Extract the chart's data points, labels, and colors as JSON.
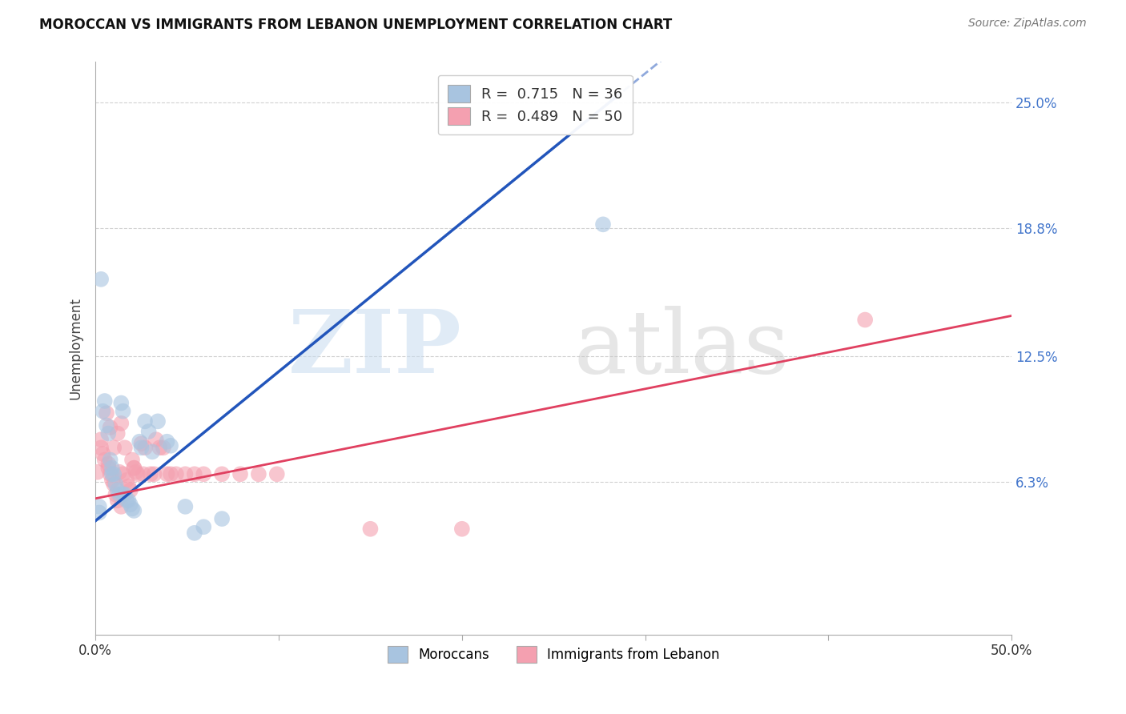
{
  "title": "MOROCCAN VS IMMIGRANTS FROM LEBANON UNEMPLOYMENT CORRELATION CHART",
  "source": "Source: ZipAtlas.com",
  "ylabel": "Unemployment",
  "xlim": [
    0.0,
    0.5
  ],
  "ylim": [
    -0.012,
    0.27
  ],
  "yticks": [
    0.063,
    0.125,
    0.188,
    0.25
  ],
  "ytick_labels": [
    "6.3%",
    "12.5%",
    "18.8%",
    "25.0%"
  ],
  "xtick_positions": [
    0.0,
    0.1,
    0.2,
    0.3,
    0.4,
    0.5
  ],
  "xtick_labels": [
    "0.0%",
    "",
    "",
    "",
    "",
    "50.0%"
  ],
  "background_color": "#ffffff",
  "moroccan_color": "#a8c4e0",
  "lebanon_color": "#f4a0b0",
  "moroccan_line_color": "#2255bb",
  "lebanon_line_color": "#e04060",
  "R_moroccan": 0.715,
  "N_moroccan": 36,
  "R_lebanon": 0.489,
  "N_lebanon": 50,
  "blue_line_solid": [
    [
      0.0,
      0.044
    ],
    [
      0.283,
      0.252
    ]
  ],
  "blue_line_dashed": [
    [
      0.283,
      0.252
    ],
    [
      0.5,
      0.41
    ]
  ],
  "pink_line": [
    [
      0.0,
      0.055
    ],
    [
      0.5,
      0.145
    ]
  ],
  "moroccan_points": [
    [
      0.002,
      0.051
    ],
    [
      0.003,
      0.163
    ],
    [
      0.004,
      0.098
    ],
    [
      0.005,
      0.103
    ],
    [
      0.006,
      0.091
    ],
    [
      0.007,
      0.087
    ],
    [
      0.008,
      0.074
    ],
    [
      0.009,
      0.07
    ],
    [
      0.009,
      0.067
    ],
    [
      0.01,
      0.067
    ],
    [
      0.011,
      0.062
    ],
    [
      0.012,
      0.059
    ],
    [
      0.013,
      0.057
    ],
    [
      0.014,
      0.102
    ],
    [
      0.015,
      0.098
    ],
    [
      0.015,
      0.057
    ],
    [
      0.016,
      0.057
    ],
    [
      0.017,
      0.054
    ],
    [
      0.018,
      0.054
    ],
    [
      0.019,
      0.052
    ],
    [
      0.02,
      0.05
    ],
    [
      0.021,
      0.049
    ],
    [
      0.024,
      0.083
    ],
    [
      0.025,
      0.08
    ],
    [
      0.027,
      0.093
    ],
    [
      0.029,
      0.088
    ],
    [
      0.031,
      0.078
    ],
    [
      0.034,
      0.093
    ],
    [
      0.039,
      0.083
    ],
    [
      0.041,
      0.081
    ],
    [
      0.049,
      0.051
    ],
    [
      0.054,
      0.038
    ],
    [
      0.059,
      0.041
    ],
    [
      0.069,
      0.045
    ],
    [
      0.277,
      0.19
    ],
    [
      0.002,
      0.048
    ]
  ],
  "lebanon_points": [
    [
      0.001,
      0.068
    ],
    [
      0.003,
      0.084
    ],
    [
      0.003,
      0.08
    ],
    [
      0.004,
      0.077
    ],
    [
      0.005,
      0.074
    ],
    [
      0.006,
      0.097
    ],
    [
      0.007,
      0.072
    ],
    [
      0.007,
      0.07
    ],
    [
      0.008,
      0.067
    ],
    [
      0.008,
      0.09
    ],
    [
      0.009,
      0.064
    ],
    [
      0.01,
      0.062
    ],
    [
      0.01,
      0.08
    ],
    [
      0.011,
      0.057
    ],
    [
      0.012,
      0.087
    ],
    [
      0.012,
      0.054
    ],
    [
      0.013,
      0.068
    ],
    [
      0.014,
      0.051
    ],
    [
      0.014,
      0.092
    ],
    [
      0.015,
      0.067
    ],
    [
      0.016,
      0.08
    ],
    [
      0.017,
      0.064
    ],
    [
      0.018,
      0.061
    ],
    [
      0.019,
      0.059
    ],
    [
      0.02,
      0.074
    ],
    [
      0.021,
      0.07
    ],
    [
      0.022,
      0.068
    ],
    [
      0.023,
      0.067
    ],
    [
      0.025,
      0.082
    ],
    [
      0.026,
      0.067
    ],
    [
      0.027,
      0.08
    ],
    [
      0.03,
      0.067
    ],
    [
      0.032,
      0.067
    ],
    [
      0.033,
      0.084
    ],
    [
      0.035,
      0.08
    ],
    [
      0.037,
      0.08
    ],
    [
      0.039,
      0.067
    ],
    [
      0.041,
      0.067
    ],
    [
      0.044,
      0.067
    ],
    [
      0.049,
      0.067
    ],
    [
      0.054,
      0.067
    ],
    [
      0.059,
      0.067
    ],
    [
      0.069,
      0.067
    ],
    [
      0.079,
      0.067
    ],
    [
      0.089,
      0.067
    ],
    [
      0.099,
      0.067
    ],
    [
      0.2,
      0.04
    ],
    [
      0.15,
      0.04
    ],
    [
      0.42,
      0.143
    ],
    [
      0.021,
      0.07
    ]
  ]
}
